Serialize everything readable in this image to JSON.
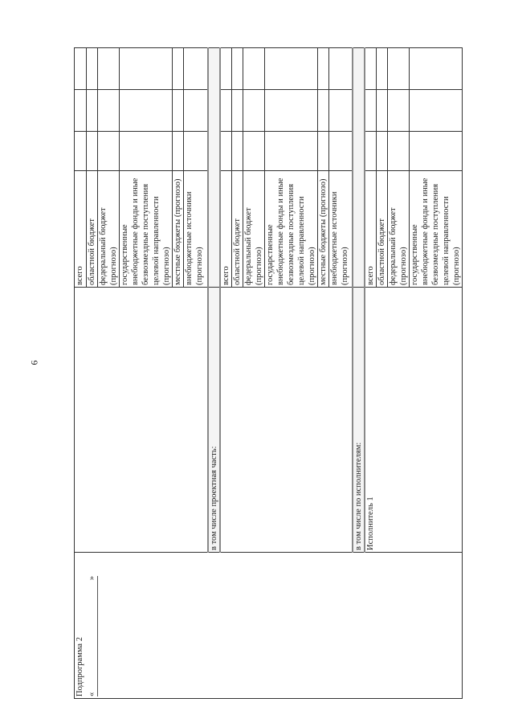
{
  "page_number": "6",
  "subprogram": {
    "title": "Подпрограмма 2",
    "quote_open": "«",
    "quote_close": "»"
  },
  "block1": {
    "sources": [
      "всего",
      "областной бюджет",
      "федеральный бюджет (прогнозо)",
      "государственные внебюджетные фонды и иные безвозмездные поступления целевой направленности (прогнозо)",
      "местные бюджеты (прогнозо)",
      "внебюджетные источники (прогнозо)"
    ]
  },
  "project_part_label": "в том числе проектная часть:",
  "block2": {
    "sources": [
      "всего",
      "областной бюджет",
      "федеральный бюджет (прогнозо)",
      "государственные внебюджетные фонды и иные безвозмездные поступления целевой направленности (прогнозо)",
      "местные бюджеты (прогнозо)",
      "внебюджетные источники (прогнозо)"
    ]
  },
  "executors_label": "в том числе по исполнителям:",
  "block3": {
    "executor": "Исполнитель 1",
    "sources": [
      "всего",
      "областной бюджет",
      "федеральный бюджет (прогнозо)",
      "государственные внебюджетные фонды и иные безвозмездные поступления целевой направленности (прогнозо)"
    ]
  }
}
